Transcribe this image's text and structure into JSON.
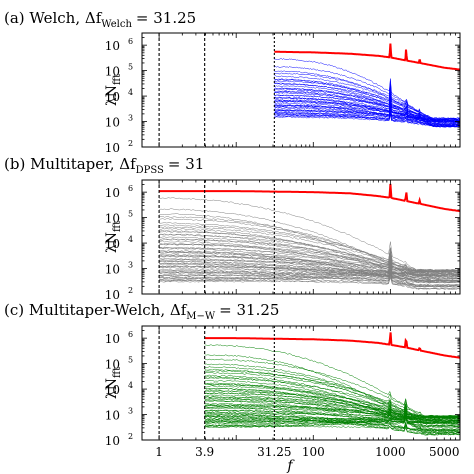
{
  "panels": [
    {
      "label": "(a) Welch,",
      "delta_symbol": "Δf",
      "delta_subscript": "Welch",
      "delta_value": "= 31.25",
      "ylabel": "λN",
      "ylabel_sub": "fft",
      "line_color": "#0000ff",
      "top_color": "#ff0000",
      "f_start": 31.25,
      "top_level": 550000,
      "n_lines": 45,
      "min_start_level": 1500,
      "end_level_range": [
        600,
        1400
      ]
    },
    {
      "label": "(b) Multitaper,",
      "delta_symbol": "Δf",
      "delta_subscript": "DPSS",
      "delta_value": "= 31",
      "ylabel": "λN",
      "ylabel_sub": "fft",
      "line_color": "#808080",
      "top_color": "#ff0000",
      "f_start": 1,
      "top_level": 1100000,
      "n_lines": 60,
      "min_start_level": 300,
      "end_level_range": [
        150,
        900
      ]
    },
    {
      "label": "(c) Multitaper-Welch,",
      "delta_symbol": "Δf",
      "delta_subscript": "M−W",
      "delta_value": "= 31.25",
      "ylabel": "λN",
      "ylabel_sub": "fft",
      "line_color": "#008000",
      "top_color": "#ff0000",
      "f_start": 3.9,
      "top_level": 1000000,
      "n_lines": 60,
      "min_start_level": 300,
      "end_level_range": [
        150,
        900
      ]
    }
  ],
  "x_axis_label": "f",
  "chart_data": {
    "type": "line",
    "x_scale": "log",
    "y_scale": "log",
    "xlim": [
      0.6,
      8000
    ],
    "ylim": [
      100,
      3000000
    ],
    "x_tick_labels": [
      {
        "value": 1,
        "label": "1"
      },
      {
        "value": 3.9,
        "label": "3.9"
      },
      {
        "value": 31.25,
        "label": "31.25"
      },
      {
        "value": 100,
        "label": "100"
      },
      {
        "value": 1000,
        "label": "1000"
      },
      {
        "value": 5000,
        "label": "5000"
      }
    ],
    "y_tick_labels": [
      {
        "value": 100,
        "base": "10",
        "exp": "2"
      },
      {
        "value": 1000,
        "base": "10",
        "exp": "3"
      },
      {
        "value": 10000,
        "base": "10",
        "exp": "4"
      },
      {
        "value": 100000,
        "base": "10",
        "exp": "5"
      },
      {
        "value": 1000000,
        "base": "10",
        "exp": "6"
      }
    ],
    "vertical_markers": [
      1,
      3.9,
      31.25
    ],
    "spectral_peaks": [
      {
        "f": 1000,
        "factor": 3.5
      },
      {
        "f": 1600,
        "factor": 2.7
      },
      {
        "f": 2400,
        "factor": 1.4
      }
    ],
    "series": [
      {
        "panel": 0,
        "x": [
          31.25,
          100,
          300,
          700,
          1000,
          1600,
          2400,
          5000,
          8000
        ],
        "y": [
          550000,
          520000,
          460000,
          380000,
          330000,
          250000,
          200000,
          130000,
          110000
        ]
      },
      {
        "panel": 1,
        "x": [
          1,
          10,
          100,
          300,
          700,
          1000,
          1600,
          2400,
          5000,
          8000
        ],
        "y": [
          1100000,
          1100000,
          1000000,
          900000,
          700000,
          600000,
          450000,
          350000,
          220000,
          180000
        ]
      },
      {
        "panel": 2,
        "x": [
          3.9,
          10,
          100,
          300,
          700,
          1000,
          1600,
          2400,
          5000,
          8000
        ],
        "y": [
          1000000,
          1000000,
          900000,
          800000,
          650000,
          550000,
          430000,
          330000,
          210000,
          170000
        ]
      }
    ]
  }
}
